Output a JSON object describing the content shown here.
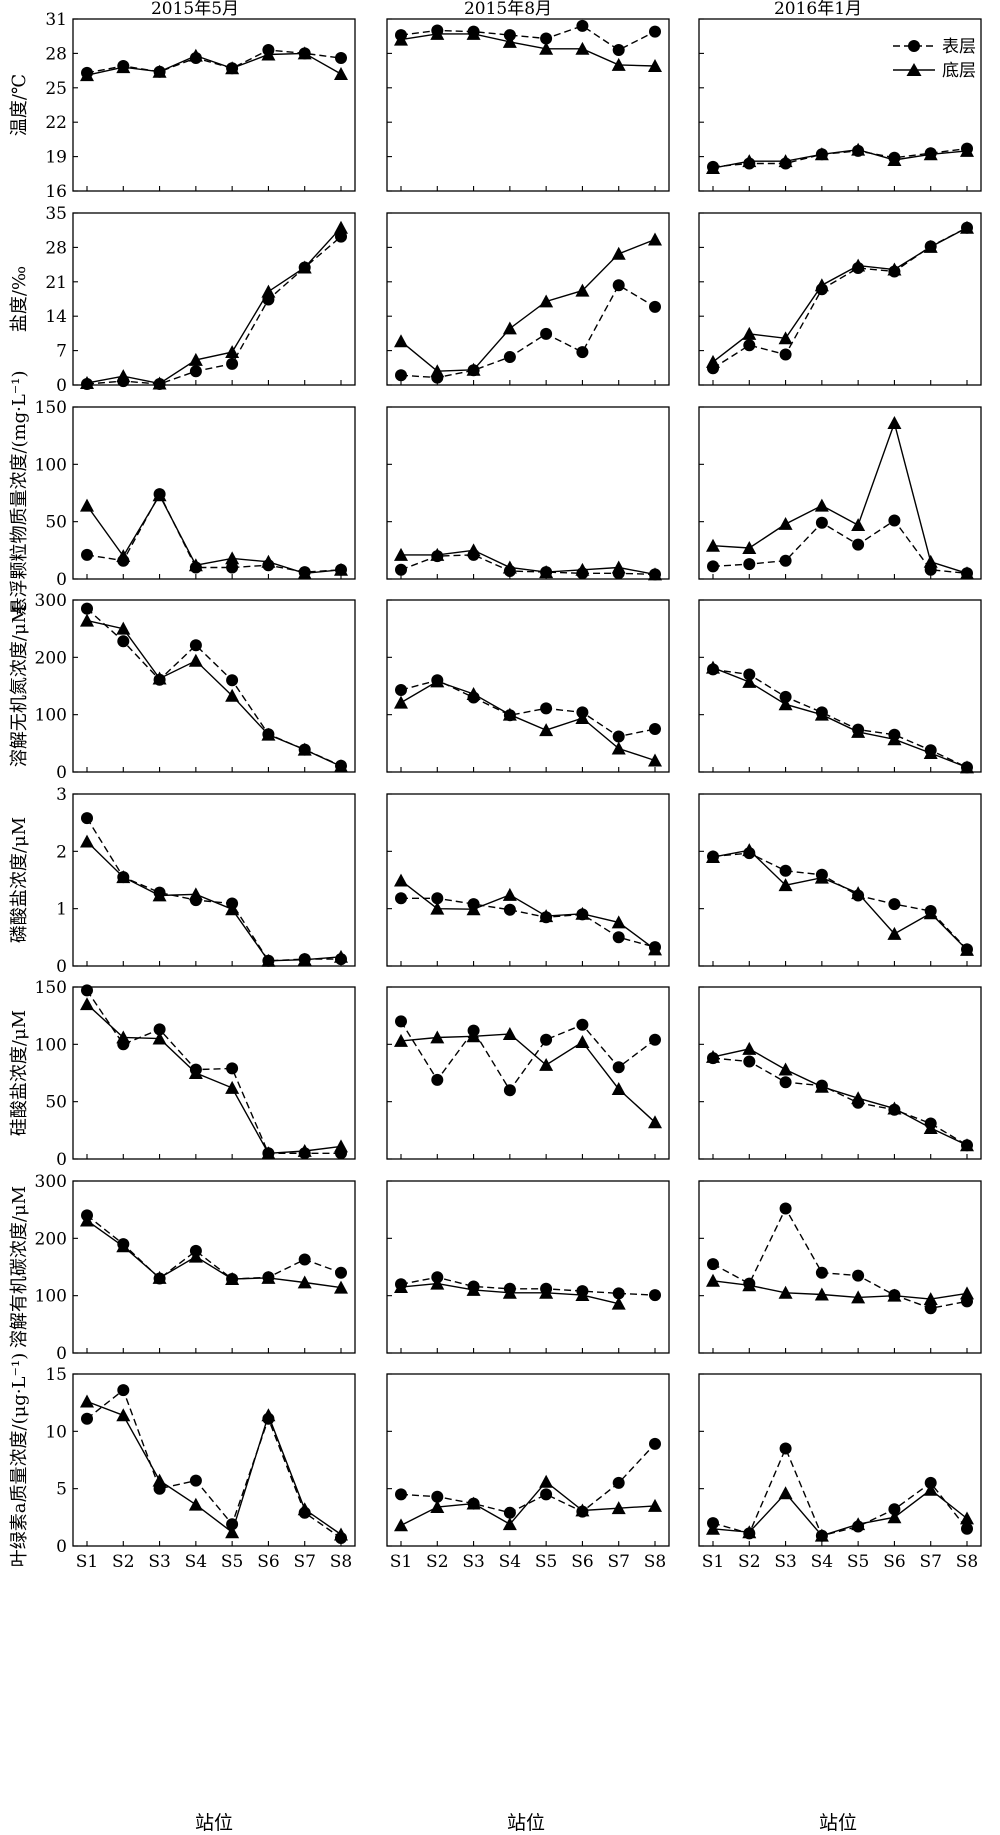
{
  "columns": [
    "2015年5月",
    "2015年8月",
    "2016年1月"
  ],
  "xlabel": "站位",
  "stations": [
    "S1",
    "S2",
    "S3",
    "S4",
    "S5",
    "S6",
    "S7",
    "S8"
  ],
  "legend": {
    "surface": "表层",
    "bottom": "底层",
    "placement": "top-right"
  },
  "style": {
    "line_color": "#000000",
    "surface_dash": "dashed",
    "bottom_dash": "solid"
  },
  "chart_data": [
    {
      "type": "line",
      "ylabel": "温度/℃",
      "ylim": [
        16,
        31
      ],
      "yticks": [
        16,
        19,
        22,
        25,
        28,
        31
      ],
      "panels": [
        {
          "column": "2015年5月",
          "series": [
            {
              "name": "表层",
              "values": [
                26.3,
                26.9,
                26.4,
                27.6,
                26.7,
                28.3,
                28.0,
                27.6
              ]
            },
            {
              "name": "底层",
              "values": [
                26.1,
                26.8,
                26.4,
                27.8,
                26.7,
                27.9,
                28.0,
                26.2
              ]
            }
          ]
        },
        {
          "column": "2015年8月",
          "series": [
            {
              "name": "表层",
              "values": [
                29.6,
                30.0,
                29.9,
                29.6,
                29.3,
                30.4,
                28.3,
                29.9
              ]
            },
            {
              "name": "底层",
              "values": [
                29.2,
                29.7,
                29.7,
                29.0,
                28.4,
                28.4,
                27.0,
                26.9
              ]
            }
          ]
        },
        {
          "column": "2016年1月",
          "series": [
            {
              "name": "表层",
              "values": [
                18.1,
                18.4,
                18.4,
                19.2,
                19.5,
                18.9,
                19.3,
                19.7
              ]
            },
            {
              "name": "底层",
              "values": [
                18.0,
                18.6,
                18.6,
                19.2,
                19.6,
                18.7,
                19.2,
                19.5
              ]
            }
          ]
        }
      ]
    },
    {
      "type": "line",
      "ylabel": "盐度/‰",
      "ylim": [
        0,
        35
      ],
      "yticks": [
        0,
        7,
        14,
        21,
        28,
        35
      ],
      "panels": [
        {
          "column": "2015年5月",
          "series": [
            {
              "name": "表层",
              "values": [
                0.2,
                0.8,
                0.2,
                2.8,
                4.3,
                17.4,
                23.9,
                30.2
              ]
            },
            {
              "name": "底层",
              "values": [
                0.4,
                1.8,
                0.3,
                5.1,
                6.7,
                19.0,
                23.9,
                32.0
              ]
            }
          ]
        },
        {
          "column": "2015年8月",
          "series": [
            {
              "name": "表层",
              "values": [
                2.0,
                1.5,
                3.0,
                5.7,
                10.4,
                6.7,
                20.3,
                15.9
              ]
            },
            {
              "name": "底层",
              "values": [
                8.9,
                2.8,
                3.1,
                11.5,
                17.0,
                19.2,
                26.7,
                29.6
              ]
            }
          ]
        },
        {
          "column": "2016年1月",
          "series": [
            {
              "name": "表层",
              "values": [
                3.4,
                8.1,
                6.2,
                19.5,
                23.8,
                23.1,
                28.2,
                32.0
              ]
            },
            {
              "name": "底层",
              "values": [
                4.7,
                10.4,
                9.5,
                20.3,
                24.3,
                23.5,
                28.1,
                32.0
              ]
            }
          ]
        }
      ]
    },
    {
      "type": "line",
      "ylabel": "悬浮颗粒物质量浓度/(mg·L⁻¹)",
      "ylim": [
        0,
        150
      ],
      "yticks": [
        0,
        50,
        100,
        150
      ],
      "panels": [
        {
          "column": "2015年5月",
          "series": [
            {
              "name": "表层",
              "values": [
                21,
                16,
                74,
                10,
                10,
                12,
                6,
                8
              ]
            },
            {
              "name": "底层",
              "values": [
                64,
                20,
                73,
                12,
                18,
                15,
                5,
                8
              ]
            }
          ]
        },
        {
          "column": "2015年8月",
          "series": [
            {
              "name": "表层",
              "values": [
                8,
                20,
                21,
                7,
                6,
                5,
                5,
                4
              ]
            },
            {
              "name": "底层",
              "values": [
                21,
                21,
                25,
                10,
                6,
                8,
                10,
                4
              ]
            }
          ]
        },
        {
          "column": "2016年1月",
          "series": [
            {
              "name": "表层",
              "values": [
                11,
                13,
                16,
                49,
                30,
                51,
                8,
                5
              ]
            },
            {
              "name": "底层",
              "values": [
                29,
                27,
                48,
                64,
                47,
                136,
                15,
                5
              ]
            }
          ]
        }
      ]
    },
    {
      "type": "line",
      "ylabel": "溶解无机氮浓度/μM",
      "ylim": [
        0,
        300
      ],
      "yticks": [
        0,
        100,
        200,
        300
      ],
      "panels": [
        {
          "column": "2015年5月",
          "series": [
            {
              "name": "表层",
              "values": [
                285,
                228,
                161,
                221,
                160,
                66,
                39,
                11
              ]
            },
            {
              "name": "底层",
              "values": [
                264,
                250,
                163,
                194,
                133,
                65,
                39,
                10
              ]
            }
          ]
        },
        {
          "column": "2015年8月",
          "series": [
            {
              "name": "表层",
              "values": [
                143,
                160,
                130,
                99,
                111,
                104,
                62,
                75
              ]
            },
            {
              "name": "底层",
              "values": [
                121,
                158,
                136,
                100,
                73,
                94,
                41,
                20
              ]
            }
          ]
        },
        {
          "column": "2016年1月",
          "series": [
            {
              "name": "表层",
              "values": [
                179,
                170,
                131,
                104,
                74,
                65,
                38,
                8
              ]
            },
            {
              "name": "底层",
              "values": [
                182,
                157,
                118,
                100,
                70,
                57,
                33,
                8
              ]
            }
          ]
        }
      ]
    },
    {
      "type": "line",
      "ylabel": "磷酸盐浓度/μM",
      "ylim": [
        0,
        3
      ],
      "yticks": [
        0,
        1,
        2,
        3
      ],
      "panels": [
        {
          "column": "2015年5月",
          "series": [
            {
              "name": "表层",
              "values": [
                2.58,
                1.55,
                1.28,
                1.15,
                1.09,
                0.09,
                0.12,
                0.12
              ]
            },
            {
              "name": "底层",
              "values": [
                2.17,
                1.55,
                1.23,
                1.25,
                0.99,
                0.09,
                0.11,
                0.16
              ]
            }
          ]
        },
        {
          "column": "2015年8月",
          "series": [
            {
              "name": "表层",
              "values": [
                1.18,
                1.18,
                1.08,
                0.98,
                0.85,
                0.9,
                0.5,
                0.33
              ]
            },
            {
              "name": "底层",
              "values": [
                1.49,
                1.0,
                0.99,
                1.24,
                0.87,
                0.91,
                0.76,
                0.29
              ]
            }
          ]
        },
        {
          "column": "2016年1月",
          "series": [
            {
              "name": "表层",
              "values": [
                1.91,
                1.97,
                1.66,
                1.59,
                1.23,
                1.08,
                0.96,
                0.29
              ]
            },
            {
              "name": "底层",
              "values": [
                1.9,
                2.02,
                1.41,
                1.54,
                1.27,
                0.56,
                0.92,
                0.28
              ]
            }
          ]
        }
      ]
    },
    {
      "type": "line",
      "ylabel": "硅酸盐浓度/μM",
      "ylim": [
        0,
        150
      ],
      "yticks": [
        0,
        50,
        100,
        150
      ],
      "panels": [
        {
          "column": "2015年5月",
          "series": [
            {
              "name": "表层",
              "values": [
                147,
                100,
                113,
                78,
                79,
                5,
                5,
                5
              ]
            },
            {
              "name": "底层",
              "values": [
                135,
                106,
                105,
                75,
                62,
                5,
                7,
                11
              ]
            }
          ]
        },
        {
          "column": "2015年8月",
          "series": [
            {
              "name": "表层",
              "values": [
                120,
                69,
                112,
                60,
                104,
                117,
                80,
                104
              ]
            },
            {
              "name": "底层",
              "values": [
                103,
                106,
                107,
                109,
                82,
                102,
                61,
                32
              ]
            }
          ]
        },
        {
          "column": "2016年1月",
          "series": [
            {
              "name": "表层",
              "values": [
                88,
                85,
                67,
                64,
                49,
                43,
                31,
                12
              ]
            },
            {
              "name": "底层",
              "values": [
                89,
                96,
                78,
                63,
                53,
                44,
                27,
                12
              ]
            }
          ]
        }
      ]
    },
    {
      "type": "line",
      "ylabel": "溶解有机碳浓度/μM",
      "ylim": [
        0,
        300
      ],
      "yticks": [
        0,
        100,
        200,
        300
      ],
      "panels": [
        {
          "column": "2015年5月",
          "series": [
            {
              "name": "表层",
              "values": [
                240,
                190,
                130,
                178,
                129,
                132,
                163,
                140
              ]
            },
            {
              "name": "底层",
              "values": [
                231,
                186,
                131,
                168,
                129,
                131,
                123,
                114
              ]
            }
          ]
        },
        {
          "column": "2015年8月",
          "series": [
            {
              "name": "表层",
              "values": [
                120,
                132,
                116,
                112,
                112,
                108,
                104,
                101
              ]
            },
            {
              "name": "底层",
              "values": [
                115,
                121,
                110,
                105,
                105,
                101,
                86,
                null
              ]
            }
          ]
        },
        {
          "column": "2016年1月",
          "series": [
            {
              "name": "表层",
              "values": [
                155,
                121,
                252,
                140,
                135,
                101,
                78,
                90
              ]
            },
            {
              "name": "底层",
              "values": [
                126,
                118,
                105,
                102,
                97,
                100,
                94,
                104
              ]
            }
          ]
        }
      ]
    },
    {
      "type": "line",
      "ylabel": "叶绿素a质量浓度/(μg·L⁻¹)",
      "ylim": [
        0,
        15
      ],
      "yticks": [
        0,
        5,
        10,
        15
      ],
      "panels": [
        {
          "column": "2015年5月",
          "series": [
            {
              "name": "表层",
              "values": [
                11.1,
                13.6,
                5.0,
                5.7,
                1.9,
                11.1,
                2.9,
                0.7
              ]
            },
            {
              "name": "底层",
              "values": [
                12.6,
                11.4,
                5.7,
                3.6,
                1.2,
                11.4,
                3.2,
                1.0
              ]
            }
          ]
        },
        {
          "column": "2015年8月",
          "series": [
            {
              "name": "表层",
              "values": [
                4.5,
                4.3,
                3.7,
                2.9,
                4.5,
                3.0,
                5.5,
                8.9
              ]
            },
            {
              "name": "底层",
              "values": [
                1.8,
                3.4,
                3.7,
                1.9,
                5.6,
                3.1,
                3.3,
                3.5
              ]
            }
          ]
        },
        {
          "column": "2016年1月",
          "series": [
            {
              "name": "表层",
              "values": [
                2.0,
                1.1,
                8.5,
                0.9,
                1.7,
                3.2,
                5.5,
                1.5
              ]
            },
            {
              "name": "底层",
              "values": [
                1.5,
                1.2,
                4.6,
                0.9,
                1.9,
                2.5,
                4.9,
                2.4
              ]
            }
          ]
        }
      ]
    }
  ]
}
